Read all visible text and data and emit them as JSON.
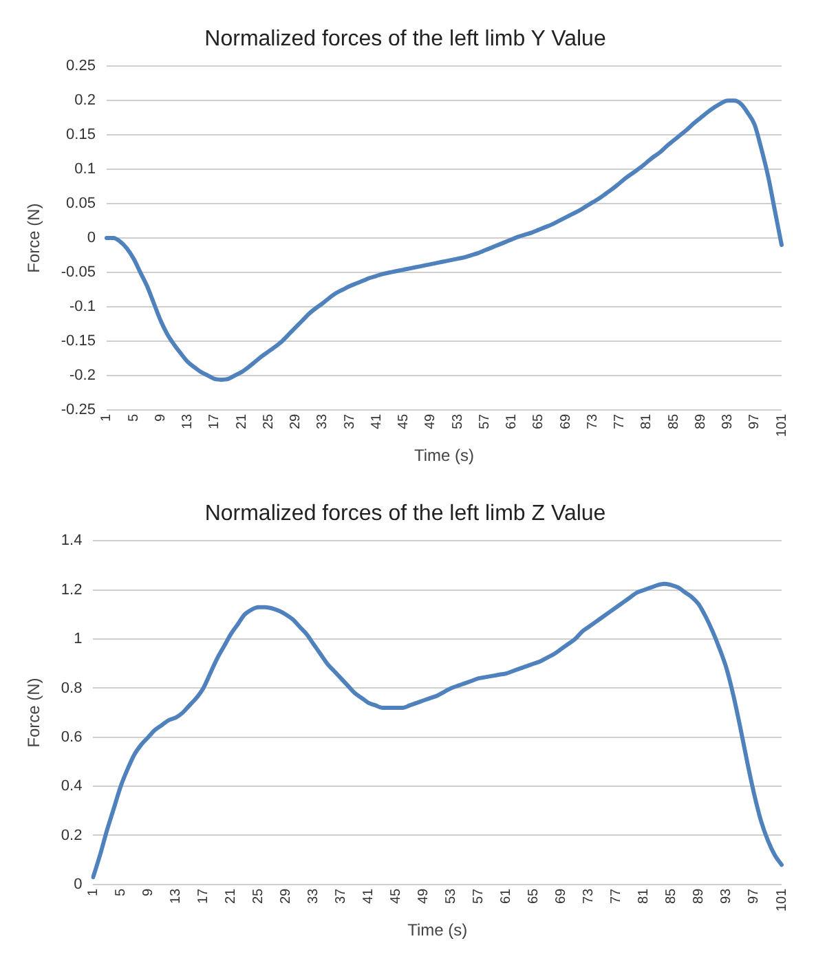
{
  "chart_data": [
    {
      "type": "line",
      "title": "Normalized forces of the left limb Y Value",
      "xlabel": "Time (s)",
      "ylabel": "Force (N)",
      "categories": [
        "1",
        null,
        null,
        null,
        "5",
        null,
        null,
        null,
        "9",
        null,
        null,
        null,
        "13",
        null,
        null,
        null,
        "17",
        null,
        null,
        null,
        "21",
        null,
        null,
        null,
        "25",
        null,
        null,
        null,
        "29",
        null,
        null,
        null,
        "33",
        null,
        null,
        null,
        "37",
        null,
        null,
        null,
        "41",
        null,
        null,
        null,
        "45",
        null,
        null,
        null,
        "49",
        null,
        null,
        null,
        "53",
        null,
        null,
        null,
        "57",
        null,
        null,
        null,
        "61",
        null,
        null,
        null,
        "65",
        null,
        null,
        null,
        "69",
        null,
        null,
        null,
        "73",
        null,
        null,
        null,
        "77",
        null,
        null,
        null,
        "81",
        null,
        null,
        null,
        "85",
        null,
        null,
        null,
        "89",
        null,
        null,
        null,
        "93",
        null,
        null,
        null,
        "97",
        null,
        null,
        null,
        "101"
      ],
      "series": [
        {
          "color": "#4f81bd",
          "values": [
            0,
            0,
            -0.005,
            -0.015,
            -0.03,
            -0.05,
            -0.07,
            -0.095,
            -0.12,
            -0.14,
            -0.155,
            -0.168,
            -0.18,
            -0.188,
            -0.195,
            -0.2,
            -0.205,
            -0.206,
            -0.205,
            -0.2,
            -0.195,
            -0.188,
            -0.18,
            -0.172,
            -0.165,
            -0.158,
            -0.15,
            -0.14,
            -0.13,
            -0.12,
            -0.11,
            -0.102,
            -0.095,
            -0.087,
            -0.08,
            -0.075,
            -0.07,
            -0.066,
            -0.062,
            -0.058,
            -0.055,
            -0.052,
            -0.05,
            -0.048,
            -0.046,
            -0.044,
            -0.042,
            -0.04,
            -0.038,
            -0.036,
            -0.034,
            -0.032,
            -0.03,
            -0.028,
            -0.025,
            -0.022,
            -0.018,
            -0.014,
            -0.01,
            -0.006,
            -0.002,
            0.002,
            0.005,
            0.008,
            0.012,
            0.016,
            0.02,
            0.025,
            0.03,
            0.035,
            0.04,
            0.046,
            0.052,
            0.058,
            0.065,
            0.072,
            0.08,
            0.088,
            0.095,
            0.102,
            0.11,
            0.118,
            0.125,
            0.134,
            0.142,
            0.15,
            0.158,
            0.167,
            0.175,
            0.183,
            0.19,
            0.196,
            0.2,
            0.2,
            0.195,
            0.182,
            0.165,
            0.13,
            0.09,
            0.04,
            -0.01
          ]
        }
      ],
      "ylim": [
        -0.25,
        0.25
      ],
      "yticks": [
        -0.25,
        -0.2,
        -0.15,
        -0.1,
        -0.05,
        0,
        0.05,
        0.1,
        0.15,
        0.2,
        0.25
      ],
      "grid": "y",
      "marker": "none",
      "line_style": "solid"
    },
    {
      "type": "line",
      "title": "Normalized forces of the left limb Z Value",
      "xlabel": "Time (s)",
      "ylabel": "Force (N)",
      "categories": [
        "1",
        null,
        null,
        null,
        "5",
        null,
        null,
        null,
        "9",
        null,
        null,
        null,
        "13",
        null,
        null,
        null,
        "17",
        null,
        null,
        null,
        "21",
        null,
        null,
        null,
        "25",
        null,
        null,
        null,
        "29",
        null,
        null,
        null,
        "33",
        null,
        null,
        null,
        "37",
        null,
        null,
        null,
        "41",
        null,
        null,
        null,
        "45",
        null,
        null,
        null,
        "49",
        null,
        null,
        null,
        "53",
        null,
        null,
        null,
        "57",
        null,
        null,
        null,
        "61",
        null,
        null,
        null,
        "65",
        null,
        null,
        null,
        "69",
        null,
        null,
        null,
        "73",
        null,
        null,
        null,
        "77",
        null,
        null,
        null,
        "81",
        null,
        null,
        null,
        "85",
        null,
        null,
        null,
        "89",
        null,
        null,
        null,
        "93",
        null,
        null,
        null,
        "97",
        null,
        null,
        null,
        "101"
      ],
      "series": [
        {
          "color": "#4f81bd",
          "values": [
            0.03,
            0.12,
            0.22,
            0.31,
            0.4,
            0.47,
            0.53,
            0.57,
            0.6,
            0.63,
            0.65,
            0.67,
            0.68,
            0.7,
            0.73,
            0.76,
            0.8,
            0.86,
            0.92,
            0.97,
            1.02,
            1.06,
            1.1,
            1.12,
            1.13,
            1.13,
            1.125,
            1.115,
            1.1,
            1.08,
            1.05,
            1.02,
            0.98,
            0.94,
            0.9,
            0.87,
            0.84,
            0.81,
            0.78,
            0.76,
            0.74,
            0.73,
            0.72,
            0.72,
            0.72,
            0.72,
            0.73,
            0.74,
            0.75,
            0.76,
            0.77,
            0.785,
            0.8,
            0.81,
            0.82,
            0.83,
            0.84,
            0.845,
            0.85,
            0.855,
            0.86,
            0.87,
            0.88,
            0.89,
            0.9,
            0.91,
            0.925,
            0.94,
            0.96,
            0.98,
            1.0,
            1.03,
            1.05,
            1.07,
            1.09,
            1.11,
            1.13,
            1.15,
            1.17,
            1.19,
            1.2,
            1.21,
            1.22,
            1.225,
            1.22,
            1.21,
            1.19,
            1.17,
            1.14,
            1.09,
            1.03,
            0.96,
            0.88,
            0.77,
            0.64,
            0.5,
            0.37,
            0.26,
            0.18,
            0.12,
            0.08
          ]
        }
      ],
      "ylim": [
        0,
        1.4
      ],
      "yticks": [
        0,
        0.2,
        0.4,
        0.6,
        0.8,
        1,
        1.2,
        1.4
      ],
      "grid": "y",
      "marker": "none",
      "line_style": "solid"
    }
  ]
}
